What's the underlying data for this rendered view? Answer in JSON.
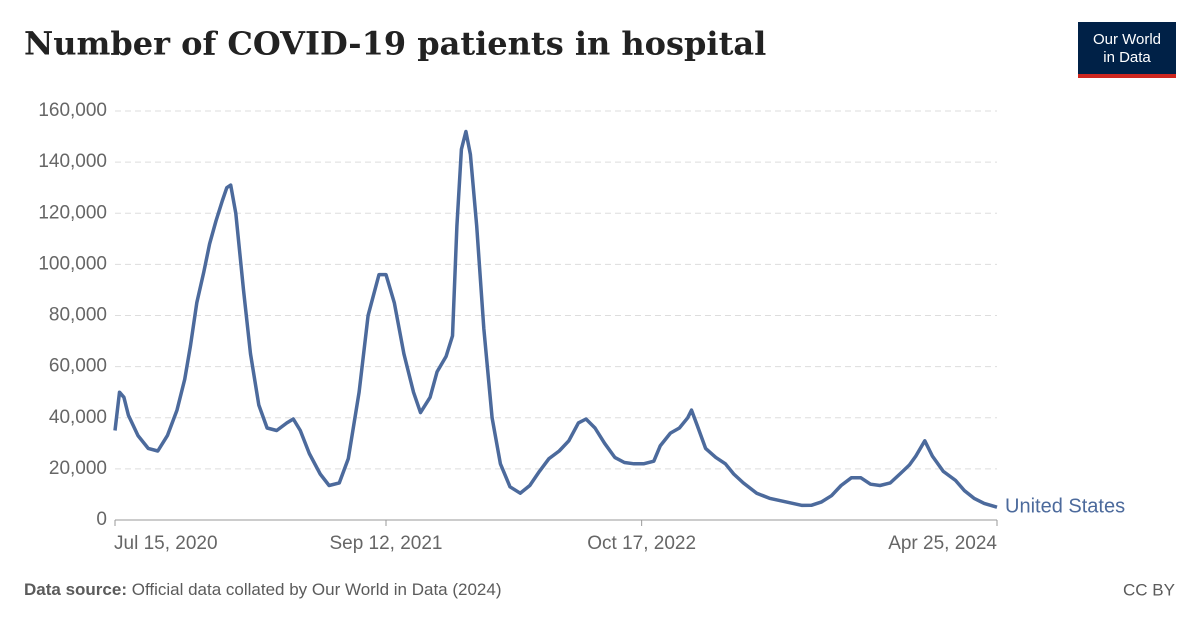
{
  "chart_data": {
    "type": "line",
    "title": "Number of COVID-19 patients in hospital",
    "x": [
      "2020-07-15",
      "2020-07-22",
      "2020-07-29",
      "2020-08-05",
      "2020-08-20",
      "2020-09-05",
      "2020-09-20",
      "2020-10-05",
      "2020-10-20",
      "2020-11-01",
      "2020-11-10",
      "2020-11-20",
      "2020-12-01",
      "2020-12-10",
      "2020-12-20",
      "2020-12-30",
      "2021-01-06",
      "2021-01-12",
      "2021-01-20",
      "2021-02-01",
      "2021-02-12",
      "2021-02-25",
      "2021-03-10",
      "2021-03-25",
      "2021-04-10",
      "2021-04-20",
      "2021-05-01",
      "2021-05-15",
      "2021-06-01",
      "2021-06-15",
      "2021-07-01",
      "2021-07-15",
      "2021-08-01",
      "2021-08-15",
      "2021-09-01",
      "2021-09-12",
      "2021-09-25",
      "2021-10-10",
      "2021-10-25",
      "2021-11-05",
      "2021-11-20",
      "2021-12-01",
      "2021-12-15",
      "2021-12-25",
      "2022-01-01",
      "2022-01-08",
      "2022-01-15",
      "2022-01-22",
      "2022-02-01",
      "2022-02-12",
      "2022-02-25",
      "2022-03-10",
      "2022-03-25",
      "2022-04-10",
      "2022-04-25",
      "2022-05-10",
      "2022-05-25",
      "2022-06-10",
      "2022-06-25",
      "2022-07-10",
      "2022-07-22",
      "2022-08-05",
      "2022-08-20",
      "2022-09-05",
      "2022-09-20",
      "2022-10-05",
      "2022-10-20",
      "2022-11-05",
      "2022-11-15",
      "2022-12-01",
      "2022-12-15",
      "2022-12-28",
      "2023-01-03",
      "2023-01-12",
      "2023-01-25",
      "2023-02-10",
      "2023-02-25",
      "2023-03-10",
      "2023-03-25",
      "2023-04-15",
      "2023-05-05",
      "2023-06-01",
      "2023-06-25",
      "2023-07-10",
      "2023-07-25",
      "2023-08-10",
      "2023-08-25",
      "2023-09-10",
      "2023-09-25",
      "2023-10-10",
      "2023-10-25",
      "2023-11-10",
      "2023-11-25",
      "2023-12-10",
      "2023-12-20",
      "2024-01-03",
      "2024-01-15",
      "2024-02-01",
      "2024-02-20",
      "2024-03-05",
      "2024-03-20",
      "2024-04-05",
      "2024-04-25"
    ],
    "series": [
      {
        "name": "United States",
        "color": "#4c6a9c",
        "values": [
          35000,
          50000,
          48000,
          41000,
          33000,
          28000,
          27000,
          33000,
          43000,
          55000,
          68000,
          85000,
          97000,
          108000,
          117000,
          125000,
          130000,
          131000,
          120000,
          90000,
          65000,
          45000,
          36000,
          35000,
          38000,
          39500,
          35000,
          26000,
          18000,
          13500,
          14500,
          24000,
          50000,
          80000,
          96000,
          96000,
          85000,
          65000,
          50000,
          42000,
          48000,
          58000,
          64000,
          72000,
          115000,
          145000,
          152000,
          143000,
          115000,
          75000,
          40000,
          22000,
          13000,
          10500,
          13500,
          19000,
          24000,
          27000,
          31000,
          38000,
          39500,
          36000,
          30000,
          24500,
          22500,
          22000,
          22000,
          23000,
          29000,
          34000,
          36000,
          40000,
          43000,
          37000,
          28000,
          24500,
          22000,
          18000,
          14500,
          10500,
          8500,
          7000,
          5700,
          5800,
          7000,
          9500,
          13500,
          16500,
          16500,
          14000,
          13500,
          14500,
          18000,
          21500,
          25000,
          31000,
          25000,
          19000,
          15500,
          11500,
          8500,
          6500,
          5000
        ]
      }
    ],
    "xlim": [
      "2020-07-15",
      "2024-04-25"
    ],
    "xticks": [
      {
        "value": "2020-07-15",
        "label": "Jul 15, 2020"
      },
      {
        "value": "2021-09-12",
        "label": "Sep 12, 2021"
      },
      {
        "value": "2022-10-17",
        "label": "Oct 17, 2022"
      },
      {
        "value": "2024-04-25",
        "label": "Apr 25, 2024"
      }
    ],
    "ylim": [
      0,
      160000
    ],
    "yticks": [
      0,
      {
        "value": 20000,
        "label": "20,000"
      },
      {
        "value": 40000,
        "label": "40,000"
      },
      {
        "value": 60000,
        "label": "60,000"
      },
      {
        "value": 80000,
        "label": "80,000"
      },
      {
        "value": 100000,
        "label": "100,000"
      },
      {
        "value": 120000,
        "label": "120,000"
      },
      {
        "value": 140000,
        "label": "140,000"
      },
      {
        "value": 160000,
        "label": "160,000"
      }
    ],
    "grid": true
  },
  "logo": {
    "line1": "Our World",
    "line2": "in Data"
  },
  "source": {
    "label": "Data source:",
    "text": "Official data collated by Our World in Data (2024)"
  },
  "license": "CC BY"
}
